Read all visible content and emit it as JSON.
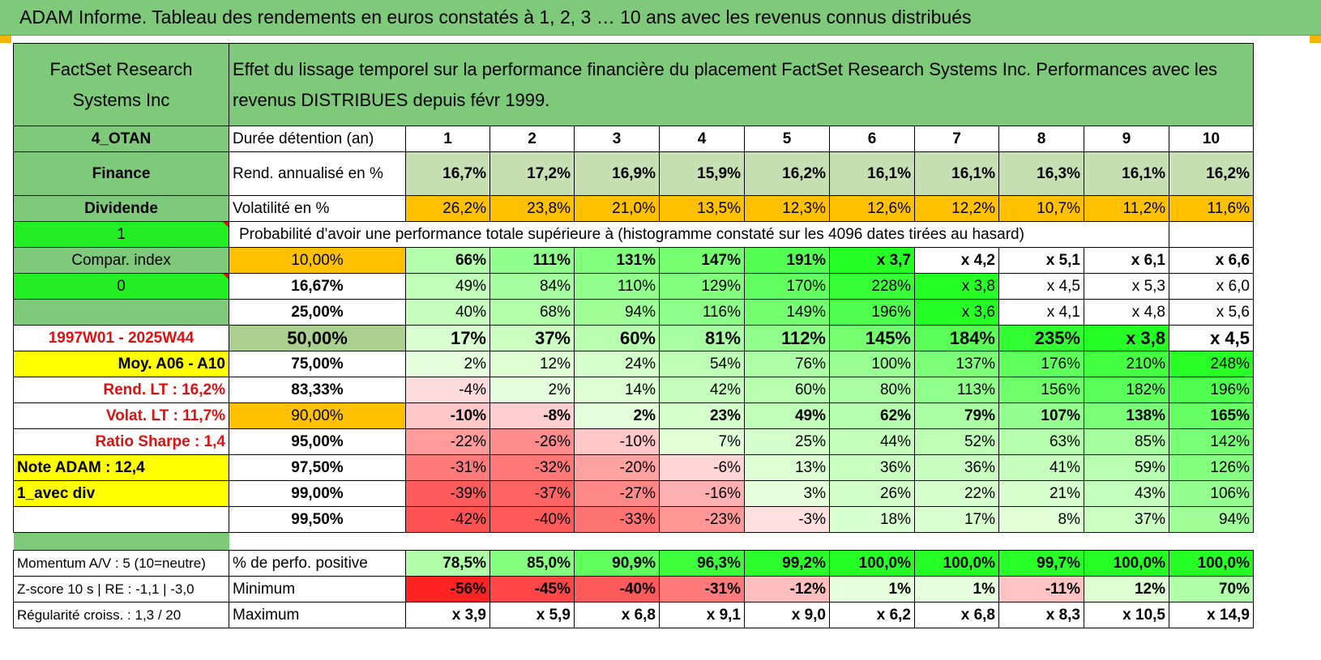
{
  "title": "ADAM Informe. Tableau des rendements en euros constatés à 1, 2, 3 … 10 ans avec les revenus connus distribués",
  "header": {
    "company": "FactSet Research Systems Inc",
    "description": "Effet du lissage temporel sur la performance financière du placement FactSet Research Systems Inc. Performances avec les revenus DISTRIBUES depuis févr 1999."
  },
  "left_labels": {
    "sector_code": "4_OTAN",
    "sector": "Finance",
    "type": "Dividende",
    "flag1": "1",
    "compar_index": "Compar. index",
    "flag0": "0",
    "period": "1997W01 - 2025W44",
    "avg_range": "Moy. A06 - A10",
    "rend_lt": "Rend. LT :    16,2%",
    "volat_lt": "Volat. LT :    11,7%",
    "sharpe": "Ratio Sharpe :    1,4",
    "note": "Note ADAM : 12,4",
    "mode": "1_avec div",
    "momentum": "Momentum A/V : 5 (10=neutre)",
    "zscore": "Z-score 10 s | RE : -1,1 | -3,0",
    "regularite": "Régularité croiss. : 1,3 / 20"
  },
  "row_labels": {
    "duree": "Durée détention (an)",
    "rend": "Rend. annualisé en %",
    "vol": "Volatilité en %",
    "proba": "Probabilité d'avoir une performance totale supérieure à (histogramme constaté sur les 4096 dates tirées au hasard)",
    "pos": "% de perfo. positive",
    "min": "Minimum",
    "max": "Maximum"
  },
  "years": [
    "1",
    "2",
    "3",
    "4",
    "5",
    "6",
    "7",
    "8",
    "9",
    "10"
  ],
  "rend": [
    "16,7%",
    "17,2%",
    "16,9%",
    "15,9%",
    "16,2%",
    "16,1%",
    "16,1%",
    "16,3%",
    "16,1%",
    "16,2%"
  ],
  "vol": [
    "26,2%",
    "23,8%",
    "21,0%",
    "13,5%",
    "12,3%",
    "12,6%",
    "12,2%",
    "10,7%",
    "11,2%",
    "11,6%"
  ],
  "percentiles": [
    {
      "p": "10,00%",
      "values": [
        "66%",
        "111%",
        "131%",
        "147%",
        "191%",
        "x 3,7",
        "x 4,2",
        "x 5,1",
        "x 6,1",
        "x 6,6"
      ]
    },
    {
      "p": "16,67%",
      "values": [
        "49%",
        "84%",
        "110%",
        "129%",
        "170%",
        "228%",
        "x 3,8",
        "x 4,5",
        "x 5,3",
        "x 6,0"
      ]
    },
    {
      "p": "25,00%",
      "values": [
        "40%",
        "68%",
        "94%",
        "116%",
        "149%",
        "196%",
        "x 3,6",
        "x 4,1",
        "x 4,8",
        "x 5,6"
      ]
    },
    {
      "p": "50,00%",
      "values": [
        "17%",
        "37%",
        "60%",
        "81%",
        "112%",
        "145%",
        "184%",
        "235%",
        "x 3,8",
        "x 4,5"
      ]
    },
    {
      "p": "75,00%",
      "values": [
        "2%",
        "12%",
        "24%",
        "54%",
        "76%",
        "100%",
        "137%",
        "176%",
        "210%",
        "248%"
      ]
    },
    {
      "p": "83,33%",
      "values": [
        "-4%",
        "2%",
        "14%",
        "42%",
        "60%",
        "80%",
        "113%",
        "156%",
        "182%",
        "196%"
      ]
    },
    {
      "p": "90,00%",
      "values": [
        "-10%",
        "-8%",
        "2%",
        "23%",
        "49%",
        "62%",
        "79%",
        "107%",
        "138%",
        "165%"
      ]
    },
    {
      "p": "95,00%",
      "values": [
        "-22%",
        "-26%",
        "-10%",
        "7%",
        "25%",
        "44%",
        "52%",
        "63%",
        "85%",
        "142%"
      ]
    },
    {
      "p": "97,50%",
      "values": [
        "-31%",
        "-32%",
        "-20%",
        "-6%",
        "13%",
        "36%",
        "36%",
        "41%",
        "59%",
        "126%"
      ]
    },
    {
      "p": "99,00%",
      "values": [
        "-39%",
        "-37%",
        "-27%",
        "-16%",
        "3%",
        "26%",
        "22%",
        "21%",
        "43%",
        "106%"
      ]
    },
    {
      "p": "99,50%",
      "values": [
        "-42%",
        "-40%",
        "-33%",
        "-23%",
        "-3%",
        "18%",
        "17%",
        "8%",
        "37%",
        "94%"
      ]
    }
  ],
  "pos": [
    "78,5%",
    "85,0%",
    "90,9%",
    "96,3%",
    "99,2%",
    "100,0%",
    "100,0%",
    "99,7%",
    "100,0%",
    "100,0%"
  ],
  "min": [
    "-56%",
    "-45%",
    "-40%",
    "-31%",
    "-12%",
    "1%",
    "1%",
    "-11%",
    "12%",
    "70%"
  ],
  "max": [
    "x 3,9",
    "x 5,9",
    "x 6,8",
    "x 9,1",
    "x 9,0",
    "x 6,2",
    "x 6,8",
    "x 8,3",
    "x 10,5",
    "x 14,9"
  ],
  "colors": {
    "header_green": "#7ec97a",
    "orange": "#ffc000",
    "yellow": "#ffff00",
    "lime": "#22ee22",
    "red_text": "#e01010"
  }
}
